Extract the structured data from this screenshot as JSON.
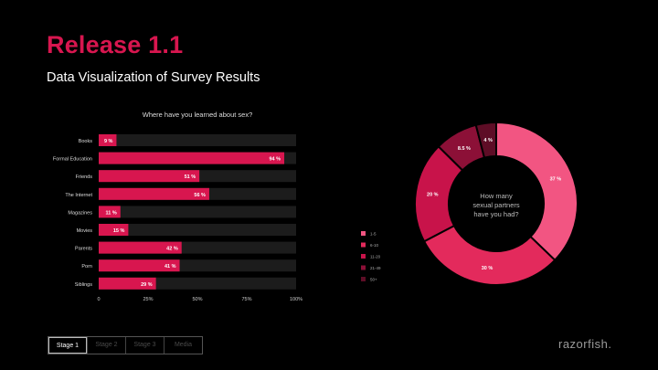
{
  "header": {
    "title": "Release 1.1",
    "subtitle": "Data Visualization of Survey Results"
  },
  "tabs": [
    {
      "label": "Stage 1",
      "active": true
    },
    {
      "label": "Stage 2",
      "active": false
    },
    {
      "label": "Stage 3",
      "active": false
    },
    {
      "label": "Media",
      "active": false
    }
  ],
  "brand": {
    "logo_text": "razorfish."
  },
  "colors": {
    "accent": "#d8164f",
    "track": "#1c1c1c"
  },
  "chart_data": [
    {
      "type": "bar",
      "orientation": "horizontal",
      "title": "Where have you learned about sex?",
      "categories": [
        "Books",
        "Formal Education",
        "Friends",
        "The Internet",
        "Magazines",
        "Movies",
        "Parents",
        "Porn",
        "Siblings"
      ],
      "values": [
        9,
        94,
        51,
        56,
        11,
        15,
        42,
        41,
        29
      ],
      "value_labels": [
        "9 %",
        "94 %",
        "51 %",
        "56 %",
        "11 %",
        "15 %",
        "42 %",
        "41 %",
        "29 %"
      ],
      "xlim": [
        0,
        100
      ],
      "xticks": [
        "0",
        "25%",
        "50%",
        "75%",
        "100%"
      ]
    },
    {
      "type": "pie",
      "variant": "donut",
      "center_text": [
        "How many",
        "sexual partners",
        "have you had?"
      ],
      "categories": [
        "1-5",
        "6-10",
        "11-20",
        "21-49",
        "50+"
      ],
      "values": [
        37,
        30,
        20,
        8.5,
        4
      ],
      "value_labels": [
        "37 %",
        "30 %",
        "20 %",
        "8.5 %",
        "4 %"
      ],
      "colors": [
        "#f25582",
        "#e32a5c",
        "#c8134a",
        "#8c1037",
        "#5e0d26"
      ],
      "legend_position": "left"
    }
  ]
}
